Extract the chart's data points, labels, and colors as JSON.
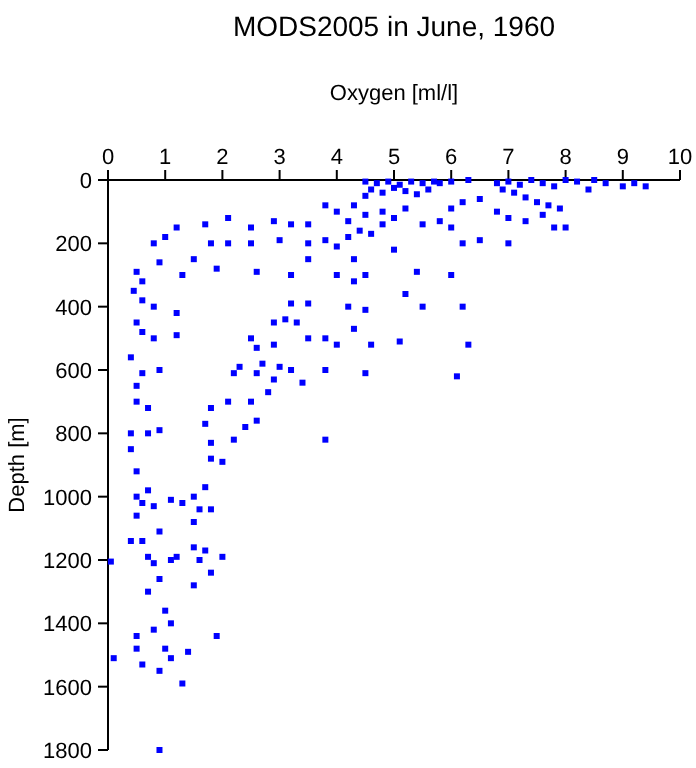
{
  "chart_data": {
    "type": "scatter",
    "title": "MODS2005 in June, 1960",
    "xlabel": "Oxygen [ml/l]",
    "ylabel": "Depth [m]",
    "xlim": [
      0,
      10
    ],
    "xticks": [
      0,
      1,
      2,
      3,
      4,
      5,
      6,
      7,
      8,
      9,
      10
    ],
    "ylim": [
      1800,
      0
    ],
    "yticks": [
      0,
      200,
      400,
      600,
      800,
      1000,
      1200,
      1400,
      1600,
      1800
    ],
    "grid": false,
    "marker": "square",
    "series": [
      {
        "color": "#0000ff",
        "x": [
          4.5,
          4.7,
          4.9,
          5.1,
          5.3,
          5.5,
          5.7,
          4.6,
          4.8,
          5.0,
          5.2,
          5.4,
          4.5,
          5.6,
          5.8,
          6.0,
          6.3,
          6.8,
          7.0,
          7.2,
          7.4,
          7.6,
          7.8,
          8.0,
          8.2,
          8.5,
          8.7,
          9.0,
          9.2,
          9.4,
          8.4,
          6.9,
          7.1,
          7.3,
          7.5,
          7.7,
          6.5,
          6.2,
          6.0,
          6.8,
          7.0,
          7.3,
          7.6,
          7.9,
          8.0,
          7.8,
          7.0,
          6.5,
          6.2,
          5.5,
          5.8,
          6.0,
          4.3,
          4.0,
          3.8,
          4.2,
          4.5,
          4.8,
          5.0,
          5.2,
          4.4,
          4.2,
          4.6,
          4.8,
          3.5,
          3.2,
          2.9,
          2.5,
          2.1,
          1.7,
          1.2,
          1.0,
          0.8,
          0.5,
          0.6,
          0.9,
          1.3,
          1.5,
          1.8,
          2.1,
          2.5,
          3.0,
          3.5,
          3.8,
          4.0,
          4.3,
          4.5,
          4.3,
          4.0,
          3.5,
          3.2,
          2.6,
          1.9,
          5.0,
          5.4,
          6.0,
          0.45,
          0.6,
          0.8,
          1.2,
          1.2,
          0.5,
          0.6,
          0.8,
          0.4,
          0.6,
          0.9,
          0.5,
          0.5,
          0.7,
          0.4,
          0.7,
          0.9,
          0.4,
          0.5,
          0.7,
          0.5,
          0.6,
          0.8,
          0.5,
          0.6,
          0.9,
          0.4,
          0.7,
          0.8,
          0.05,
          0.9,
          0.7,
          1.0,
          1.1,
          0.5,
          0.8,
          0.5,
          1.0,
          0.1,
          0.6,
          1.1,
          1.4,
          1.3,
          0.9,
          0.9,
          1.3,
          1.5,
          1.7,
          1.6,
          1.8,
          1.5,
          1.5,
          1.7,
          2.0,
          1.9,
          1.8,
          1.6,
          1.5,
          1.1,
          1.2,
          1.1,
          2.0,
          1.8,
          1.8,
          2.2,
          2.4,
          2.6,
          1.7,
          1.8,
          2.1,
          2.5,
          2.2,
          2.3,
          2.7,
          2.6,
          2.9,
          2.8,
          3.2,
          3.0,
          3.4,
          3.8,
          4.5,
          3.8,
          2.5,
          2.6,
          2.9,
          3.1,
          3.3,
          3.5,
          3.8,
          4.0,
          4.3,
          4.2,
          4.5,
          3.5,
          3.2,
          2.9,
          5.2,
          5.5,
          5.1,
          6.2,
          6.3,
          6.1,
          4.6
        ],
        "values": [
          5,
          10,
          5,
          15,
          5,
          10,
          5,
          30,
          40,
          25,
          35,
          45,
          50,
          30,
          10,
          5,
          0,
          10,
          5,
          15,
          0,
          10,
          20,
          0,
          5,
          0,
          10,
          20,
          10,
          20,
          30,
          30,
          40,
          55,
          70,
          80,
          60,
          70,
          90,
          100,
          120,
          130,
          110,
          90,
          150,
          150,
          200,
          190,
          200,
          140,
          130,
          150,
          80,
          100,
          80,
          130,
          110,
          100,
          120,
          90,
          160,
          180,
          170,
          140,
          140,
          140,
          130,
          150,
          120,
          140,
          150,
          180,
          200,
          290,
          320,
          260,
          300,
          250,
          200,
          200,
          200,
          190,
          200,
          190,
          210,
          250,
          300,
          320,
          300,
          250,
          300,
          290,
          280,
          220,
          290,
          300,
          350,
          380,
          400,
          420,
          490,
          450,
          480,
          500,
          560,
          610,
          600,
          650,
          700,
          720,
          800,
          800,
          790,
          850,
          920,
          980,
          1000,
          1020,
          1030,
          1060,
          1140,
          1110,
          1140,
          1190,
          1210,
          1205,
          1260,
          1300,
          1360,
          1400,
          1440,
          1420,
          1480,
          1480,
          1510,
          1530,
          1510,
          1490,
          1590,
          1550,
          1800,
          1020,
          1000,
          970,
          1040,
          1040,
          1080,
          1160,
          1170,
          1190,
          1440,
          1240,
          1200,
          1280,
          1200,
          1190,
          1010,
          890,
          880,
          830,
          820,
          780,
          760,
          770,
          720,
          700,
          700,
          610,
          590,
          580,
          610,
          630,
          670,
          600,
          590,
          640,
          600,
          610,
          820,
          500,
          530,
          520,
          440,
          450,
          500,
          500,
          520,
          470,
          400,
          410,
          390,
          390,
          450,
          360,
          400,
          510,
          400,
          520,
          620,
          520
        ]
      }
    ]
  }
}
